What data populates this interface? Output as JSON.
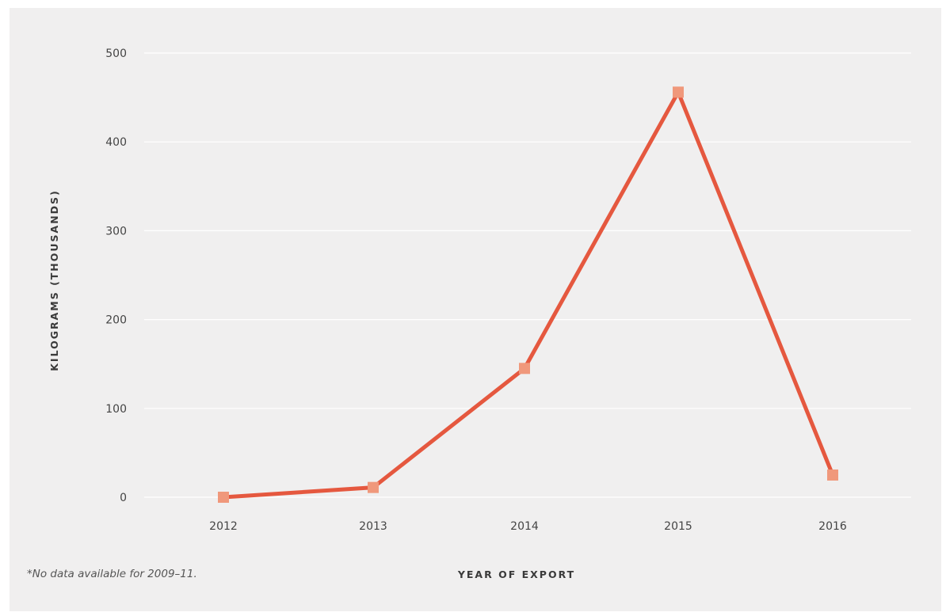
{
  "chart_data": {
    "type": "line",
    "categories": [
      "2012",
      "2013",
      "2014",
      "2015",
      "2016"
    ],
    "series": [
      {
        "values": [
          0,
          11,
          145,
          456,
          25
        ],
        "color": "#e5583f",
        "marker_color": "#f0987b"
      }
    ],
    "xlabel": "YEAR OF EXPORT",
    "ylabel": "KILOGRAMS (THOUSANDS)",
    "yticks": [
      "0",
      "100",
      "200",
      "300",
      "400",
      "500"
    ],
    "ylim": [
      0,
      500
    ],
    "grid": true,
    "footnote": "*No data available for 2009–11."
  }
}
